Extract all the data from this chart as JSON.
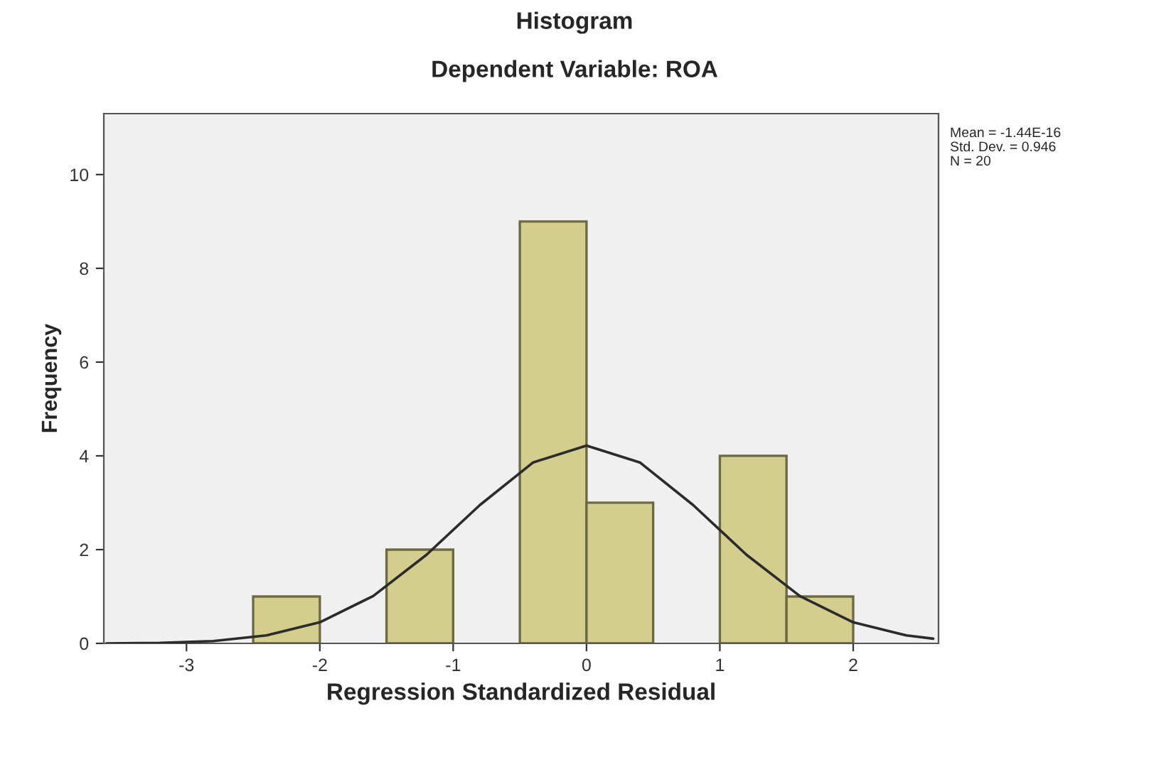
{
  "chart_data": {
    "type": "histogram",
    "title": "Histogram",
    "subtitle": "Dependent Variable: ROA",
    "xlabel": "Regression Standardized Residual",
    "ylabel": "Frequency",
    "bins": [
      -2.5,
      -2.0,
      -1.5,
      -1.0,
      -0.5,
      0.0,
      0.5,
      1.0,
      1.5,
      2.0
    ],
    "values": [
      1,
      0,
      2,
      0,
      9,
      3,
      0,
      4,
      1
    ],
    "color": "#d3cd8e",
    "series": [
      {
        "type": "line",
        "color": "#2b2b2b",
        "x": [
          -3.6,
          -3.2,
          -2.8,
          -2.4,
          -2.0,
          -1.6,
          -1.2,
          -0.8,
          -0.4,
          0.0,
          0.4,
          0.8,
          1.2,
          1.6,
          2.0,
          2.4,
          2.6
        ],
        "values": [
          0.0,
          0.01,
          0.05,
          0.17,
          0.45,
          1.01,
          1.89,
          2.95,
          3.86,
          4.22,
          3.86,
          2.95,
          1.89,
          1.01,
          0.45,
          0.17,
          0.1
        ]
      }
    ],
    "xlim": [
      -3.62,
      2.64
    ],
    "xticks": [
      -3,
      -2,
      -1,
      0,
      1,
      2
    ],
    "ylim": [
      0,
      11.3
    ],
    "yticks": [
      0,
      2,
      4,
      6,
      8,
      10
    ],
    "grid": false,
    "legend": false,
    "annotations": [
      "Mean = -1.44E-16",
      "Std. Dev. = 0.946",
      "N = 20"
    ]
  }
}
